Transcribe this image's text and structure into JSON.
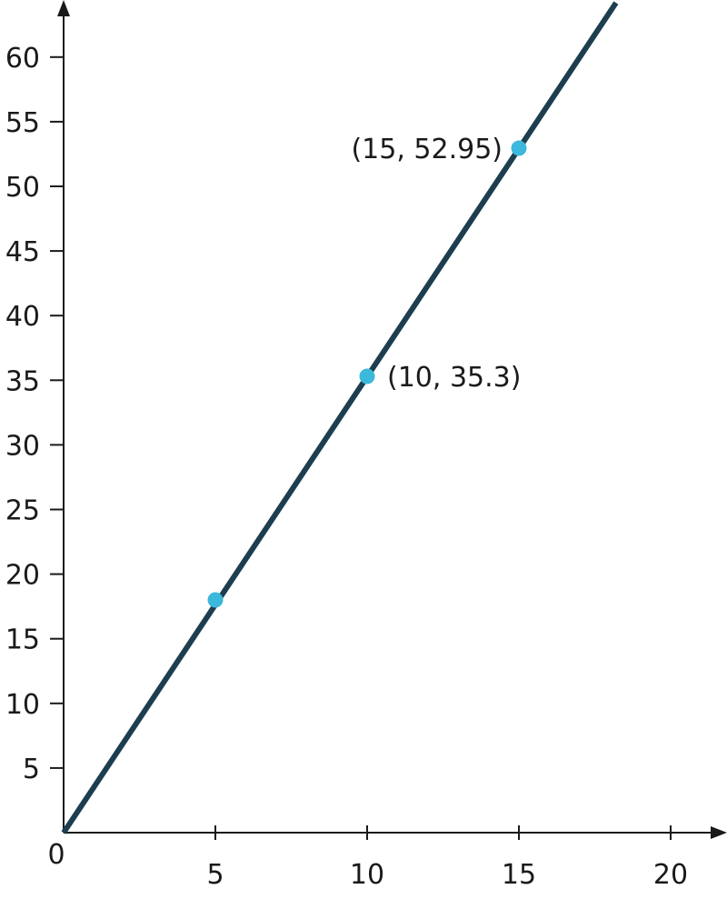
{
  "chart_data": {
    "type": "line",
    "title": "",
    "xlabel": "",
    "ylabel": "",
    "xlim": [
      0,
      20
    ],
    "ylim": [
      0,
      60
    ],
    "x_ticks": [
      5,
      10,
      15,
      20
    ],
    "y_ticks": [
      5,
      10,
      15,
      20,
      25,
      30,
      35,
      40,
      45,
      50,
      55,
      60
    ],
    "origin_label": "0",
    "grid": false,
    "line": {
      "x": [
        0,
        18.2
      ],
      "y": [
        0,
        64.2
      ],
      "color": "#1d3e4e"
    },
    "points": [
      {
        "x": 5,
        "y": 18,
        "label": "",
        "color": "#3bb8dc"
      },
      {
        "x": 10,
        "y": 35.3,
        "label": "(10, 35.3)",
        "color": "#3bb8dc"
      },
      {
        "x": 15,
        "y": 52.95,
        "label": "(15, 52.95)",
        "color": "#3bb8dc"
      }
    ]
  }
}
